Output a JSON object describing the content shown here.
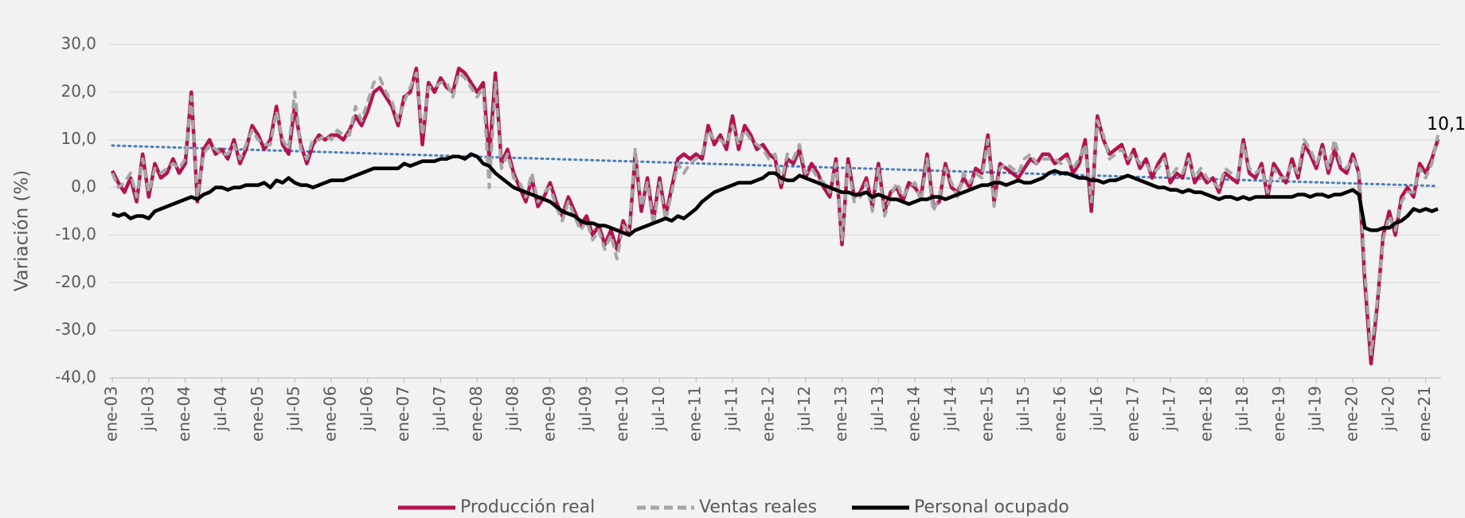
{
  "chart_data": {
    "type": "line",
    "y_axis_label": "Variación (%)",
    "ylim": [
      -40,
      30
    ],
    "yticks": [
      {
        "value": 30,
        "label": "30,0"
      },
      {
        "value": 20,
        "label": "20,0"
      },
      {
        "value": 10,
        "label": "10,0"
      },
      {
        "value": 0,
        "label": "0,0"
      },
      {
        "value": -10,
        "label": "-10,0"
      },
      {
        "value": -20,
        "label": "-20,0"
      },
      {
        "value": -30,
        "label": "-30,0"
      },
      {
        "value": -40,
        "label": "-40,0"
      }
    ],
    "grid": true,
    "legend": "bottom",
    "categories": [
      "ene-03",
      null,
      null,
      null,
      null,
      null,
      "jul-03",
      null,
      null,
      null,
      null,
      null,
      "ene-04",
      null,
      null,
      null,
      null,
      null,
      "jul-04",
      null,
      null,
      null,
      null,
      null,
      "ene-05",
      null,
      null,
      null,
      null,
      null,
      "jul-05",
      null,
      null,
      null,
      null,
      null,
      "ene-06",
      null,
      null,
      null,
      null,
      null,
      "jul-06",
      null,
      null,
      null,
      null,
      null,
      "ene-07",
      null,
      null,
      null,
      null,
      null,
      "jul-07",
      null,
      null,
      null,
      null,
      null,
      "ene-08",
      null,
      null,
      null,
      null,
      null,
      "jul-08",
      null,
      null,
      null,
      null,
      null,
      "ene-09",
      null,
      null,
      null,
      null,
      null,
      "jul-09",
      null,
      null,
      null,
      null,
      null,
      "ene-10",
      null,
      null,
      null,
      null,
      null,
      "jul-10",
      null,
      null,
      null,
      null,
      null,
      "ene-11",
      null,
      null,
      null,
      null,
      null,
      "jul-11",
      null,
      null,
      null,
      null,
      null,
      "ene-12",
      null,
      null,
      null,
      null,
      null,
      "jul-12",
      null,
      null,
      null,
      null,
      null,
      "ene-13",
      null,
      null,
      null,
      null,
      null,
      "jul-13",
      null,
      null,
      null,
      null,
      null,
      "ene-14",
      null,
      null,
      null,
      null,
      null,
      "jul-14",
      null,
      null,
      null,
      null,
      null,
      "ene-15",
      null,
      null,
      null,
      null,
      null,
      "jul-15",
      null,
      null,
      null,
      null,
      null,
      "ene-16",
      null,
      null,
      null,
      null,
      null,
      "jul-16",
      null,
      null,
      null,
      null,
      null,
      "ene-17",
      null,
      null,
      null,
      null,
      null,
      "jul-17",
      null,
      null,
      null,
      null,
      null,
      "ene-18",
      null,
      null,
      null,
      null,
      null,
      "jul-18",
      null,
      null,
      null,
      null,
      null,
      "ene-19",
      null,
      null,
      null,
      null,
      null,
      "jul-19",
      null,
      null,
      null,
      null,
      null,
      "ene-20",
      null,
      null,
      null,
      null,
      null,
      "jul-20",
      null,
      null,
      null,
      null,
      null,
      "ene-21",
      null,
      null
    ],
    "series": [
      {
        "name": "Producción real",
        "color": "#b3134f",
        "dashed": false,
        "values": [
          3.5,
          1,
          -1,
          2,
          -3,
          7,
          -2,
          5,
          2,
          3,
          6,
          3,
          5,
          20,
          -3,
          8,
          10,
          7,
          8,
          6,
          10,
          5,
          8,
          13,
          11,
          8,
          10,
          17,
          9,
          7,
          17,
          9,
          5,
          9,
          11,
          10,
          11,
          11,
          10,
          12,
          15,
          13,
          16,
          20,
          21,
          19,
          17,
          13,
          19,
          20,
          25,
          9,
          22,
          20,
          23,
          21,
          20,
          25,
          24,
          22,
          20,
          22,
          6,
          24,
          5,
          8,
          3,
          0,
          -3,
          2,
          -4,
          -2,
          1,
          -3,
          -6,
          -2,
          -5,
          -8,
          -6,
          -10,
          -8,
          -12,
          -9,
          -13,
          -7,
          -10,
          7,
          -5,
          2,
          -7,
          2,
          -6,
          0,
          6,
          7,
          6,
          7,
          6,
          13,
          9,
          11,
          8,
          15,
          8,
          13,
          11,
          8,
          9,
          7,
          6,
          0,
          6,
          5,
          8,
          2,
          5,
          3,
          0,
          -2,
          6,
          -12,
          6,
          -2,
          -1,
          2,
          -4,
          5,
          -5,
          -1,
          0,
          -3,
          1,
          0,
          -2,
          7,
          -4,
          -3,
          5,
          0,
          -1,
          2,
          0,
          4,
          3,
          11,
          -3,
          5,
          4,
          3,
          2,
          4,
          6,
          5,
          7,
          7,
          5,
          6,
          7,
          3,
          5,
          10,
          -5,
          15,
          10,
          7,
          8,
          9,
          5,
          8,
          4,
          6,
          2,
          5,
          7,
          1,
          3,
          2,
          7,
          1,
          3,
          1,
          2,
          -1,
          3,
          2,
          1,
          10,
          3,
          2,
          5,
          -2,
          5,
          3,
          1,
          6,
          2,
          9,
          7,
          4,
          9,
          3,
          8,
          4,
          3,
          7,
          3,
          -20,
          -37,
          -25,
          -10,
          -5,
          -10,
          -2,
          0,
          -2,
          5,
          3,
          6,
          10.1
        ]
      },
      {
        "name": "Ventas reales",
        "color": "#a6a6a6",
        "dashed": true,
        "values": [
          3,
          0,
          1,
          3,
          -2,
          6,
          -1,
          4,
          3,
          4,
          5,
          4,
          6,
          19,
          -2,
          7,
          9,
          8,
          7,
          7,
          9,
          6,
          9,
          12,
          10,
          9,
          9,
          16,
          10,
          8,
          20,
          8,
          6,
          10,
          10,
          11,
          10,
          12,
          11,
          11,
          17,
          14,
          18,
          22,
          23,
          20,
          18,
          14,
          18,
          21,
          24,
          11,
          21,
          21,
          22,
          22,
          19,
          24,
          23,
          21,
          19,
          21,
          0,
          22,
          4,
          7,
          2,
          1,
          -2,
          3,
          -3,
          -1,
          0,
          -4,
          -7,
          -3,
          -6,
          -9,
          -7,
          -11,
          -9,
          -13,
          -10,
          -15,
          -8,
          -9,
          8,
          -4,
          1,
          -8,
          1,
          -7,
          -1,
          5,
          3,
          5,
          6,
          7,
          12,
          10,
          10,
          9,
          13,
          9,
          12,
          10,
          9,
          8,
          6,
          7,
          1,
          7,
          6,
          9,
          3,
          4,
          2,
          1,
          -1,
          5,
          -11,
          5,
          -3,
          -2,
          1,
          -5,
          4,
          -6,
          -2,
          1,
          -2,
          0,
          1,
          -3,
          6,
          -5,
          -2,
          4,
          1,
          -2,
          3,
          1,
          3,
          2,
          10,
          -4,
          4,
          5,
          4,
          3,
          6,
          7,
          5,
          6,
          6,
          6,
          5,
          6,
          4,
          6,
          9,
          -3,
          14,
          11,
          6,
          7,
          8,
          6,
          7,
          5,
          5,
          3,
          4,
          6,
          2,
          4,
          3,
          6,
          2,
          4,
          2,
          1,
          0,
          4,
          3,
          2,
          9,
          4,
          3,
          4,
          -1,
          4,
          2,
          2,
          5,
          3,
          10,
          8,
          5,
          8,
          4,
          10,
          5,
          4,
          6,
          4,
          -18,
          -35,
          -24,
          -11,
          -6,
          -9,
          -3,
          -1,
          -1,
          4,
          2,
          5,
          11
        ]
      },
      {
        "name": "Personal ocupado",
        "color": "#000000",
        "dashed": false,
        "values": [
          -5.5,
          -6,
          -5.5,
          -6.5,
          -6,
          -6,
          -6.5,
          -5,
          -4.5,
          -4,
          -3.5,
          -3,
          -2.5,
          -2,
          -2.5,
          -1.5,
          -1,
          0,
          0,
          -0.5,
          0,
          0,
          0.5,
          0.5,
          0.5,
          1,
          0,
          1.5,
          1,
          2,
          1,
          0.5,
          0.5,
          0,
          0.5,
          1,
          1.5,
          1.5,
          1.5,
          2,
          2.5,
          3,
          3.5,
          4,
          4,
          4,
          4,
          4,
          5,
          4.5,
          5,
          5.5,
          5.5,
          5.5,
          6,
          6,
          6.5,
          6.5,
          6,
          7,
          6.5,
          5,
          4.5,
          3,
          2,
          1,
          0,
          -0.5,
          -1,
          -1.5,
          -2,
          -2.5,
          -3,
          -4,
          -5,
          -5.5,
          -6,
          -7,
          -7.5,
          -7.5,
          -8,
          -8,
          -8.5,
          -9,
          -9.5,
          -10,
          -9,
          -8.5,
          -8,
          -7.5,
          -7,
          -6.5,
          -7,
          -6,
          -6.5,
          -5.5,
          -4.5,
          -3,
          -2,
          -1,
          -0.5,
          0,
          0.5,
          1,
          1,
          1,
          1.5,
          2,
          3,
          3,
          2,
          1.5,
          1.5,
          2.5,
          2,
          1.5,
          1,
          0.5,
          0,
          -0.5,
          -1,
          -1,
          -1.5,
          -1.5,
          -1,
          -2,
          -1.5,
          -2,
          -2.5,
          -2.5,
          -3,
          -3.5,
          -3,
          -2.5,
          -2.5,
          -2,
          -2,
          -2.5,
          -2,
          -1.5,
          -1,
          -0.5,
          0,
          0.5,
          0.5,
          1,
          1,
          0.5,
          1,
          1.5,
          1,
          1,
          1.5,
          2,
          3,
          3.5,
          3,
          3,
          2.5,
          2,
          2,
          1.5,
          1.5,
          1,
          1.5,
          1.5,
          2,
          2.5,
          2,
          1.5,
          1,
          0.5,
          0,
          0,
          -0.5,
          -0.5,
          -1,
          -0.5,
          -1,
          -1,
          -1.5,
          -2,
          -2.5,
          -2,
          -2,
          -2.5,
          -2,
          -2.5,
          -2,
          -2,
          -2,
          -2,
          -2,
          -2,
          -2,
          -1.5,
          -1.5,
          -2,
          -1.5,
          -1.5,
          -2,
          -1.5,
          -1.5,
          -1,
          -0.5,
          -1.5,
          -8.5,
          -9,
          -9,
          -8.5,
          -8.5,
          -7.5,
          -7,
          -6,
          -4.5,
          -5,
          -4.5,
          -5,
          -4.5
        ]
      }
    ],
    "trendline": {
      "color": "#4a7ebb",
      "values": [
        8.8,
        0.3
      ]
    },
    "annotations": [
      {
        "text": "10,1",
        "series": 0,
        "index": 218
      }
    ]
  }
}
